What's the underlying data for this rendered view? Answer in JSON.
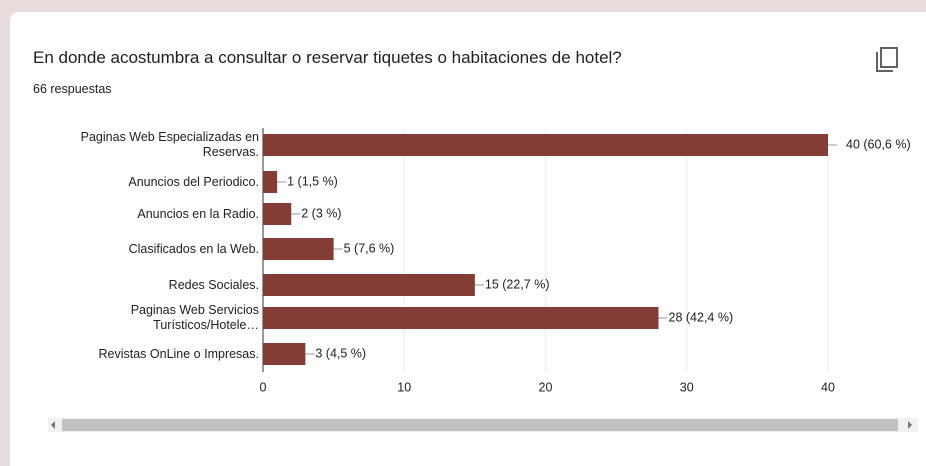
{
  "title": "En donde acostumbra a consultar o reservar tiquetes o habitaciones de hotel?",
  "subtitle": "66 respuestas",
  "chart_data": {
    "type": "bar",
    "orientation": "horizontal",
    "categories": [
      "Paginas Web Especializadas en Reservas.",
      "Anuncios del Periodico.",
      "Anuncios en la Radio.",
      "Clasificados en la Web.",
      "Redes Sociales.",
      "Paginas Web Servicios Turísticos/Hotele…",
      "Revistas OnLine o Impresas."
    ],
    "values": [
      40,
      1,
      2,
      5,
      15,
      28,
      3
    ],
    "value_labels": [
      "40 (60,6 %)",
      "1 (1,5 %)",
      "2 (3 %)",
      "5 (7,6 %)",
      "15 (22,7 %)",
      "28 (42,4 %)",
      "3 (4,5 %)"
    ],
    "color": "#843d36",
    "xlim": [
      0,
      40
    ],
    "xticks": [
      0,
      10,
      20,
      30,
      40
    ],
    "grid": true
  }
}
